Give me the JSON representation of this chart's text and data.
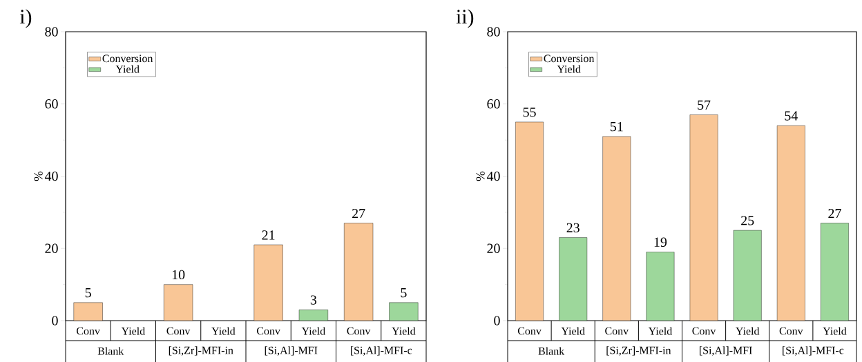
{
  "chart_data": [
    {
      "type": "bar",
      "title": "i)",
      "ylabel": "%",
      "categories": [
        "Blank",
        "[Si,Zr]-MFI-in",
        "[Si,Al]-MFI",
        "[Si,Al]-MFI-c"
      ],
      "series": [
        {
          "name": "Conversion",
          "color": "#f9c696",
          "values": [
            5,
            10,
            21,
            27
          ],
          "value_labels": [
            "5",
            "10",
            "21",
            "27"
          ]
        },
        {
          "name": "Yield",
          "color": "#9dd79b",
          "values": [
            null,
            null,
            3,
            5
          ],
          "value_labels": [
            null,
            null,
            "3",
            "5"
          ]
        }
      ],
      "ylim": [
        0,
        80
      ],
      "yticks": [
        0,
        20,
        40,
        60,
        80
      ],
      "legend": "top left",
      "annotations": [
        "Conv",
        "Yield"
      ]
    },
    {
      "type": "bar",
      "title": "ii)",
      "ylabel": "%",
      "categories": [
        "Blank",
        "[Si,Zr]-MFI-in",
        "[Si,Al]-MFI",
        "[Si,Al]-MFI-c"
      ],
      "series": [
        {
          "name": "Conversion",
          "color": "#f9c696",
          "values": [
            55,
            51,
            57,
            54
          ],
          "value_labels": [
            "55",
            "51",
            "57",
            "54"
          ]
        },
        {
          "name": "Yield",
          "color": "#9dd79b",
          "values": [
            23,
            19,
            25,
            27
          ],
          "value_labels": [
            "23",
            "19",
            "25",
            "27"
          ]
        }
      ],
      "ylim": [
        0,
        80
      ],
      "yticks": [
        0,
        20,
        40,
        60,
        80
      ],
      "legend": "top left",
      "annotations": [
        "Conv",
        "Yield"
      ]
    }
  ]
}
